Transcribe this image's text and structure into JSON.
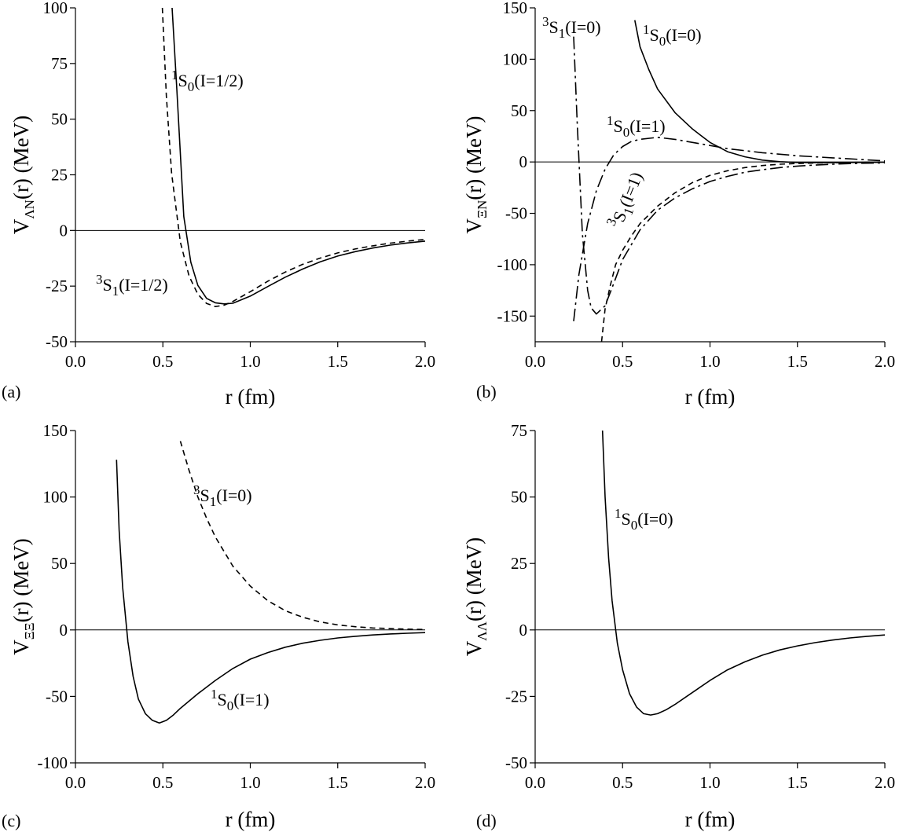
{
  "chart_data": [
    {
      "type": "line",
      "panel_label": "(a)",
      "xlabel": "r (fm)",
      "ylabel": {
        "main": "V",
        "subscript": "ΛN",
        "rest": "(r) (MeV)"
      },
      "xlim": [
        0,
        2
      ],
      "ylim": [
        -50,
        100
      ],
      "xticks": [
        "0.0",
        "0.5",
        "1.0",
        "1.5",
        "2.0"
      ],
      "yticks": [
        "100",
        "75",
        "50",
        "25",
        "0",
        "-25",
        "-50"
      ],
      "series": [
        {
          "name": "1S0(I=1/2)",
          "style": "solid",
          "label": {
            "sup": "1",
            "letter": "S",
            "sub": "0",
            "rest": "(I=1/2)"
          },
          "x": [
            0.553,
            0.58,
            0.62,
            0.66,
            0.7,
            0.75,
            0.8,
            0.85,
            0.9,
            1.0,
            1.1,
            1.2,
            1.3,
            1.4,
            1.5,
            1.6,
            1.7,
            1.8,
            1.9,
            2.0
          ],
          "y": [
            100,
            63.5,
            6.2,
            -14.2,
            -24.7,
            -30.5,
            -32.5,
            -33.0,
            -32.7,
            -29.5,
            -25.2,
            -21.0,
            -17.3,
            -14.1,
            -11.5,
            -9.5,
            -7.9,
            -6.6,
            -5.6,
            -4.8
          ]
        },
        {
          "name": "3S1(I=1/2)",
          "style": "dashed",
          "label": {
            "sup": "3",
            "letter": "S",
            "sub": "1",
            "rest": "(I=1/2)"
          },
          "x": [
            0.497,
            0.52,
            0.55,
            0.6,
            0.65,
            0.7,
            0.75,
            0.8,
            0.85,
            0.9,
            1.0,
            1.1,
            1.2,
            1.3,
            1.4,
            1.5,
            1.6,
            1.7,
            1.8,
            1.9,
            2.0
          ],
          "y": [
            100,
            60.4,
            25.6,
            -5.2,
            -20.5,
            -28.7,
            -32.8,
            -34.2,
            -33.6,
            -31.9,
            -27.5,
            -22.8,
            -18.7,
            -15.2,
            -12.4,
            -10.1,
            -8.3,
            -6.9,
            -5.7,
            -4.8,
            -4.0
          ]
        }
      ]
    },
    {
      "type": "line",
      "panel_label": "(b)",
      "xlabel": "r (fm)",
      "ylabel": {
        "main": "V",
        "subscript": "ΞN",
        "rest": "(r) (MeV)"
      },
      "xlim": [
        0,
        2
      ],
      "ylim": [
        -175,
        150
      ],
      "xticks": [
        "0.0",
        "0.5",
        "1.0",
        "1.5",
        "2.0"
      ],
      "yticks": [
        "150",
        "100",
        "50",
        "0",
        "-50",
        "-100",
        "-150"
      ],
      "series": [
        {
          "name": "1S0(I=0)",
          "style": "solid",
          "label": {
            "sup": "1",
            "letter": "S",
            "sub": "0",
            "rest": "(I=0)"
          },
          "x": [
            0.57,
            0.6,
            0.65,
            0.7,
            0.8,
            0.9,
            1.0,
            1.1,
            1.2,
            1.3,
            1.4,
            1.5,
            1.6,
            1.7,
            1.8,
            1.9,
            2.0
          ],
          "y": [
            138,
            112,
            90,
            71,
            48,
            32,
            19,
            10,
            5,
            1.8,
            0.3,
            -0.5,
            -0.6,
            -0.6,
            -0.5,
            -0.4,
            -0.3
          ]
        },
        {
          "name": "3S1(I=0)",
          "style": "dashdot",
          "label": {
            "sup": "3",
            "letter": "S",
            "sub": "1",
            "rest": "(I=0)"
          },
          "x": [
            0.22,
            0.24,
            0.27,
            0.3,
            0.32,
            0.35,
            0.4,
            0.45,
            0.5,
            0.6,
            0.7,
            0.8,
            0.9,
            1.0,
            1.1,
            1.2,
            1.3,
            1.4,
            1.5,
            1.6,
            1.7,
            1.8,
            1.9,
            2.0
          ],
          "y": [
            122,
            40,
            -70,
            -125,
            -142,
            -148,
            -140,
            -118,
            -95,
            -66,
            -47,
            -35,
            -26,
            -19,
            -14,
            -10,
            -7.5,
            -5.5,
            -4,
            -3,
            -2.2,
            -1.6,
            -1.2,
            -0.9
          ]
        },
        {
          "name": "1S0(I=1)",
          "style": "dashdot",
          "label": {
            "sup": "1",
            "letter": "S",
            "sub": "0",
            "rest": "(I=1)"
          },
          "x": [
            0.22,
            0.25,
            0.3,
            0.35,
            0.4,
            0.45,
            0.5,
            0.55,
            0.6,
            0.7,
            0.8,
            0.9,
            1.0,
            1.1,
            1.2,
            1.3,
            1.4,
            1.5,
            1.6,
            1.7,
            1.8,
            1.9,
            2.0
          ],
          "y": [
            -155,
            -110,
            -60,
            -28,
            -7,
            7,
            15,
            20,
            22,
            24,
            22,
            19,
            16,
            13,
            11,
            9,
            7.5,
            6,
            5,
            4,
            3,
            2,
            1
          ]
        },
        {
          "name": "3S1(I=1)",
          "style": "dashed",
          "label": {
            "sup": "3",
            "letter": "S",
            "sub": "1",
            "rest": "(I=1)"
          },
          "x": [
            0.38,
            0.4,
            0.43,
            0.46,
            0.5,
            0.55,
            0.6,
            0.7,
            0.8,
            0.9,
            1.0,
            1.1,
            1.2,
            1.3,
            1.4,
            1.5,
            1.6,
            1.7,
            1.8,
            1.9,
            2.0
          ],
          "y": [
            -175,
            -143,
            -120,
            -100,
            -86,
            -72,
            -60,
            -43,
            -30,
            -20,
            -13,
            -8.5,
            -5.5,
            -3.5,
            -2.2,
            -1.5,
            -1,
            -0.7,
            -0.5,
            -0.3,
            -0.2
          ]
        }
      ]
    },
    {
      "type": "line",
      "panel_label": "(c)",
      "xlabel": "r (fm)",
      "ylabel": {
        "main": "V",
        "subscript": "ΞΞ",
        "rest": "(r) (MeV)"
      },
      "xlim": [
        0,
        2
      ],
      "ylim": [
        -100,
        150
      ],
      "xticks": [
        "0.0",
        "0.5",
        "1.0",
        "1.5",
        "2.0"
      ],
      "yticks": [
        "150",
        "100",
        "50",
        "0",
        "-50",
        "-100"
      ],
      "series": [
        {
          "name": "1S0(I=1)",
          "style": "solid",
          "label": {
            "sup": "1",
            "letter": "S",
            "sub": "0",
            "rest": "(I=1)"
          },
          "x": [
            0.235,
            0.25,
            0.27,
            0.3,
            0.33,
            0.36,
            0.4,
            0.44,
            0.48,
            0.52,
            0.56,
            0.6,
            0.7,
            0.8,
            0.9,
            1.0,
            1.1,
            1.2,
            1.3,
            1.4,
            1.5,
            1.6,
            1.7,
            1.8,
            1.9,
            2.0
          ],
          "y": [
            128,
            75,
            32,
            -9,
            -35,
            -52,
            -63,
            -68,
            -70,
            -68,
            -64,
            -59,
            -48,
            -38,
            -29,
            -22,
            -17,
            -13,
            -10,
            -7.8,
            -6,
            -4.8,
            -3.8,
            -3,
            -2.5,
            -2
          ]
        },
        {
          "name": "3S1(I=0)",
          "style": "dashed",
          "label": {
            "sup": "3",
            "letter": "S",
            "sub": "1",
            "rest": "(I=0)"
          },
          "x": [
            0.6,
            0.65,
            0.7,
            0.75,
            0.8,
            0.9,
            1.0,
            1.1,
            1.2,
            1.3,
            1.4,
            1.5,
            1.6,
            1.7,
            1.8,
            1.9,
            2.0
          ],
          "y": [
            142,
            120,
            100,
            84,
            70,
            48,
            33,
            22,
            14.5,
            9.5,
            6,
            3.8,
            2.4,
            1.5,
            1,
            0.6,
            0.3
          ]
        }
      ]
    },
    {
      "type": "line",
      "panel_label": "(d)",
      "xlabel": "r (fm)",
      "ylabel": {
        "main": "V",
        "subscript": "ΛΛ",
        "rest": "(r) (MeV)"
      },
      "xlim": [
        0,
        2
      ],
      "ylim": [
        -50,
        75
      ],
      "xticks": [
        "0.0",
        "0.5",
        "1.0",
        "1.5",
        "2.0"
      ],
      "yticks": [
        "75",
        "50",
        "25",
        "0",
        "-25",
        "-50"
      ],
      "series": [
        {
          "name": "1S0(I=0)",
          "style": "solid",
          "label": {
            "sup": "1",
            "letter": "S",
            "sub": "0",
            "rest": "(I=0)"
          },
          "x": [
            0.385,
            0.4,
            0.42,
            0.44,
            0.47,
            0.5,
            0.54,
            0.58,
            0.62,
            0.66,
            0.7,
            0.75,
            0.8,
            0.9,
            1.0,
            1.1,
            1.2,
            1.3,
            1.4,
            1.5,
            1.6,
            1.7,
            1.8,
            1.9,
            2.0
          ],
          "y": [
            75,
            50,
            27,
            11,
            -5,
            -15,
            -24,
            -29,
            -31.5,
            -32,
            -31.5,
            -30,
            -28,
            -23.5,
            -19,
            -15,
            -12,
            -9.5,
            -7.5,
            -6,
            -4.8,
            -3.8,
            -3,
            -2.4,
            -1.9
          ]
        }
      ]
    }
  ]
}
